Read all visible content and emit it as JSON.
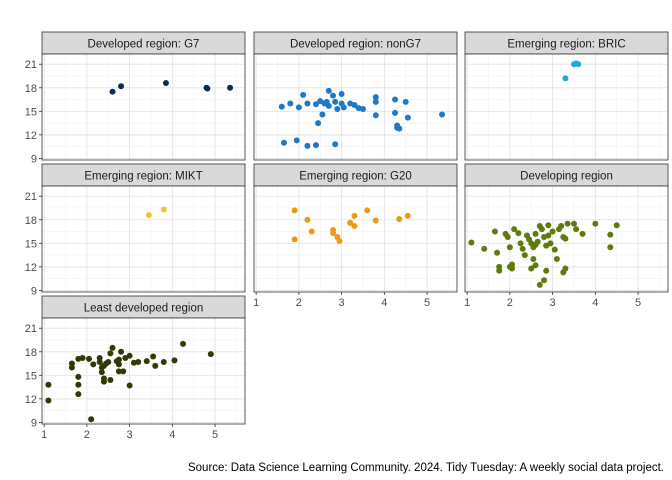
{
  "caption": "Source: Data Science Learning Community. 2024. Tidy Tuesday: A weekly social data project.",
  "chart_data": {
    "type": "scatter",
    "facet": "faceted scatter, 3 columns, shared axes",
    "xlim": [
      0.95,
      5.7
    ],
    "ylim": [
      8.8,
      22.3
    ],
    "x_ticks": [
      1,
      2,
      3,
      4,
      5
    ],
    "y_ticks": [
      9,
      12,
      15,
      18,
      21
    ],
    "x_tick_labels": [
      "1",
      "2",
      "3",
      "4",
      "5"
    ],
    "y_tick_labels": [
      "9",
      "12",
      "15",
      "18",
      "21"
    ],
    "grid": true,
    "legend": "none",
    "panels": [
      {
        "name": "Developed region: G7",
        "color": "#0d2c54",
        "points": [
          [
            2.6,
            17.5
          ],
          [
            2.8,
            18.2
          ],
          [
            3.85,
            18.6
          ],
          [
            4.8,
            18.0
          ],
          [
            4.82,
            17.9
          ],
          [
            5.35,
            18.0
          ]
        ]
      },
      {
        "name": "Developed region: nonG7",
        "color": "#1f78c8",
        "points": [
          [
            1.6,
            15.6
          ],
          [
            1.8,
            16.0
          ],
          [
            2.0,
            15.5
          ],
          [
            2.1,
            17.1
          ],
          [
            2.2,
            16.0
          ],
          [
            2.4,
            15.9
          ],
          [
            2.5,
            16.3
          ],
          [
            2.55,
            14.6
          ],
          [
            2.6,
            16.0
          ],
          [
            2.65,
            16.2
          ],
          [
            2.7,
            15.7
          ],
          [
            2.85,
            16.2
          ],
          [
            2.9,
            15.3
          ],
          [
            3.0,
            16.0
          ],
          [
            3.05,
            15.5
          ],
          [
            3.2,
            16.0
          ],
          [
            3.3,
            15.8
          ],
          [
            3.4,
            15.4
          ],
          [
            3.5,
            15.3
          ],
          [
            2.7,
            17.6
          ],
          [
            2.8,
            17.0
          ],
          [
            3.0,
            17.2
          ],
          [
            3.8,
            16.8
          ],
          [
            3.8,
            16.2
          ],
          [
            4.25,
            16.5
          ],
          [
            4.5,
            16.2
          ],
          [
            4.55,
            14.2
          ],
          [
            4.25,
            14.8
          ],
          [
            4.3,
            13.2
          ],
          [
            4.3,
            12.9
          ],
          [
            4.35,
            12.8
          ],
          [
            3.8,
            14.5
          ],
          [
            2.45,
            13.5
          ],
          [
            1.65,
            11.0
          ],
          [
            1.95,
            11.3
          ],
          [
            2.2,
            10.6
          ],
          [
            2.4,
            10.7
          ],
          [
            2.85,
            10.8
          ],
          [
            5.35,
            14.6
          ]
        ]
      },
      {
        "name": "Emerging region: BRIC",
        "color": "#1ea9e1",
        "points": [
          [
            3.3,
            19.2
          ],
          [
            3.5,
            21.0
          ],
          [
            3.55,
            21.1
          ],
          [
            3.6,
            21.0
          ]
        ]
      },
      {
        "name": "Emerging region: MIKT",
        "color": "#f2c12e",
        "points": [
          [
            3.45,
            18.6
          ],
          [
            3.8,
            19.3
          ]
        ]
      },
      {
        "name": "Emerging region: G20",
        "color": "#ee9a14",
        "points": [
          [
            1.9,
            19.2
          ],
          [
            1.9,
            15.5
          ],
          [
            2.2,
            18.0
          ],
          [
            2.3,
            16.5
          ],
          [
            2.8,
            16.7
          ],
          [
            2.8,
            16.3
          ],
          [
            2.9,
            15.8
          ],
          [
            2.95,
            15.3
          ],
          [
            3.2,
            17.6
          ],
          [
            3.3,
            17.2
          ],
          [
            3.3,
            18.5
          ],
          [
            3.6,
            19.2
          ],
          [
            3.8,
            17.9
          ],
          [
            4.35,
            18.1
          ],
          [
            4.55,
            18.5
          ]
        ]
      },
      {
        "name": "Developing region",
        "color": "#5f7a0d",
        "points": [
          [
            1.1,
            15.1
          ],
          [
            1.4,
            14.3
          ],
          [
            1.65,
            16.5
          ],
          [
            1.7,
            13.8
          ],
          [
            1.75,
            12.0
          ],
          [
            1.75,
            11.5
          ],
          [
            1.9,
            16.2
          ],
          [
            1.95,
            15.8
          ],
          [
            2.0,
            14.5
          ],
          [
            2.0,
            12.0
          ],
          [
            2.05,
            11.8
          ],
          [
            2.05,
            12.3
          ],
          [
            2.1,
            16.8
          ],
          [
            2.2,
            16.3
          ],
          [
            2.25,
            15.0
          ],
          [
            2.3,
            14.3
          ],
          [
            2.35,
            13.5
          ],
          [
            2.4,
            16.0
          ],
          [
            2.45,
            15.5
          ],
          [
            2.5,
            15.0
          ],
          [
            2.55,
            14.5
          ],
          [
            2.6,
            16.2
          ],
          [
            2.6,
            14.8
          ],
          [
            2.65,
            15.2
          ],
          [
            2.7,
            17.2
          ],
          [
            2.75,
            16.8
          ],
          [
            2.8,
            15.8
          ],
          [
            2.85,
            14.7
          ],
          [
            2.9,
            17.3
          ],
          [
            2.9,
            16.0
          ],
          [
            2.95,
            15.0
          ],
          [
            3.0,
            16.5
          ],
          [
            3.05,
            14.2
          ],
          [
            3.1,
            13.0
          ],
          [
            3.15,
            16.8
          ],
          [
            3.2,
            17.2
          ],
          [
            3.25,
            15.8
          ],
          [
            3.3,
            15.6
          ],
          [
            3.3,
            11.8
          ],
          [
            3.25,
            11.3
          ],
          [
            3.35,
            17.5
          ],
          [
            3.5,
            17.5
          ],
          [
            3.55,
            16.8
          ],
          [
            3.7,
            16.2
          ],
          [
            4.0,
            17.5
          ],
          [
            4.35,
            16.1
          ],
          [
            4.35,
            14.5
          ],
          [
            4.5,
            17.3
          ],
          [
            2.55,
            13.0
          ],
          [
            2.6,
            12.2
          ],
          [
            2.7,
            9.7
          ],
          [
            2.8,
            10.3
          ],
          [
            2.85,
            11.5
          ],
          [
            2.5,
            11.8
          ]
        ]
      },
      {
        "name": "Least developed region",
        "color": "#2e3b05",
        "points": [
          [
            1.1,
            13.8
          ],
          [
            1.1,
            11.8
          ],
          [
            1.65,
            16.5
          ],
          [
            1.65,
            16.0
          ],
          [
            1.8,
            17.1
          ],
          [
            1.8,
            14.8
          ],
          [
            1.8,
            13.8
          ],
          [
            1.8,
            12.6
          ],
          [
            1.9,
            17.2
          ],
          [
            2.05,
            17.1
          ],
          [
            2.1,
            9.4
          ],
          [
            2.15,
            16.4
          ],
          [
            2.3,
            17.2
          ],
          [
            2.3,
            16.7
          ],
          [
            2.35,
            16.0
          ],
          [
            2.35,
            15.4
          ],
          [
            2.4,
            16.2
          ],
          [
            2.4,
            14.6
          ],
          [
            2.4,
            14.2
          ],
          [
            2.45,
            16.5
          ],
          [
            2.5,
            16.7
          ],
          [
            2.55,
            17.8
          ],
          [
            2.55,
            14.4
          ],
          [
            2.6,
            18.5
          ],
          [
            2.7,
            16.8
          ],
          [
            2.75,
            17.0
          ],
          [
            2.75,
            16.4
          ],
          [
            2.75,
            15.5
          ],
          [
            2.8,
            18.0
          ],
          [
            2.85,
            15.5
          ],
          [
            2.9,
            17.2
          ],
          [
            3.0,
            17.5
          ],
          [
            3.0,
            13.7
          ],
          [
            3.1,
            16.6
          ],
          [
            3.2,
            16.7
          ],
          [
            3.4,
            16.8
          ],
          [
            3.55,
            17.4
          ],
          [
            3.6,
            16.2
          ],
          [
            3.8,
            16.7
          ],
          [
            4.05,
            16.9
          ],
          [
            4.25,
            19.0
          ],
          [
            4.9,
            17.7
          ]
        ]
      }
    ]
  }
}
